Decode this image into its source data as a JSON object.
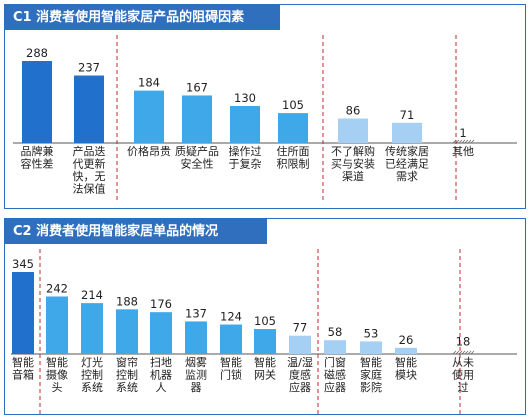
{
  "panels": [
    {
      "title": "C1 消费者使用智能家居产品的阻碍因素"
    },
    {
      "title": "C2 消费者使用智能家居单品的情况"
    }
  ],
  "colors": {
    "dark": "#2070cc",
    "mid": "#3fa8e8",
    "light": "#a6cff4",
    "divider": "#c0282d",
    "frame": "#2a6fbf"
  },
  "chart_data": [
    {
      "type": "bar",
      "title": "C1 消费者使用智能家居产品的阻碍因素",
      "categories": [
        [
          "品牌兼",
          "容性差"
        ],
        [
          "产品迭",
          "代更新",
          "快，无",
          "法保值"
        ],
        [
          "价格昂贵"
        ],
        [
          "质疑产品",
          "安全性"
        ],
        [
          "操作过",
          "于复杂"
        ],
        [
          "住所面",
          "积限制"
        ],
        [
          "不了解购",
          "买与安装",
          "渠道"
        ],
        [
          "传统家居",
          "已经满足",
          "需求"
        ],
        [
          "其他"
        ]
      ],
      "values": [
        288,
        237,
        184,
        167,
        130,
        105,
        86,
        71,
        1
      ],
      "tiers": [
        "dark",
        "dark",
        "mid",
        "mid",
        "mid",
        "mid",
        "light",
        "light",
        "none"
      ]
    },
    {
      "type": "bar",
      "title": "C2 消费者使用智能家居单品的情况",
      "categories": [
        [
          "智能",
          "音箱"
        ],
        [
          "智能",
          "摄像",
          "头"
        ],
        [
          "灯光",
          "控制",
          "系统"
        ],
        [
          "窗帘",
          "控制",
          "系统"
        ],
        [
          "扫地",
          "机器",
          "人"
        ],
        [
          "烟雾",
          "监测",
          "器"
        ],
        [
          "智能",
          "门锁"
        ],
        [
          "智能",
          "网关"
        ],
        [
          "温/湿",
          "度感",
          "应器"
        ],
        [
          "门窗",
          "磁感",
          "应器"
        ],
        [
          "智能",
          "家庭",
          "影院"
        ],
        [
          "智能",
          "模块"
        ],
        [
          "从未",
          "使用",
          "过"
        ]
      ],
      "values": [
        345,
        242,
        214,
        188,
        176,
        137,
        124,
        105,
        77,
        58,
        53,
        26,
        18
      ],
      "tiers": [
        "dark",
        "mid",
        "mid",
        "mid",
        "mid",
        "mid",
        "mid",
        "mid",
        "light",
        "light",
        "light",
        "light",
        "none"
      ]
    }
  ]
}
